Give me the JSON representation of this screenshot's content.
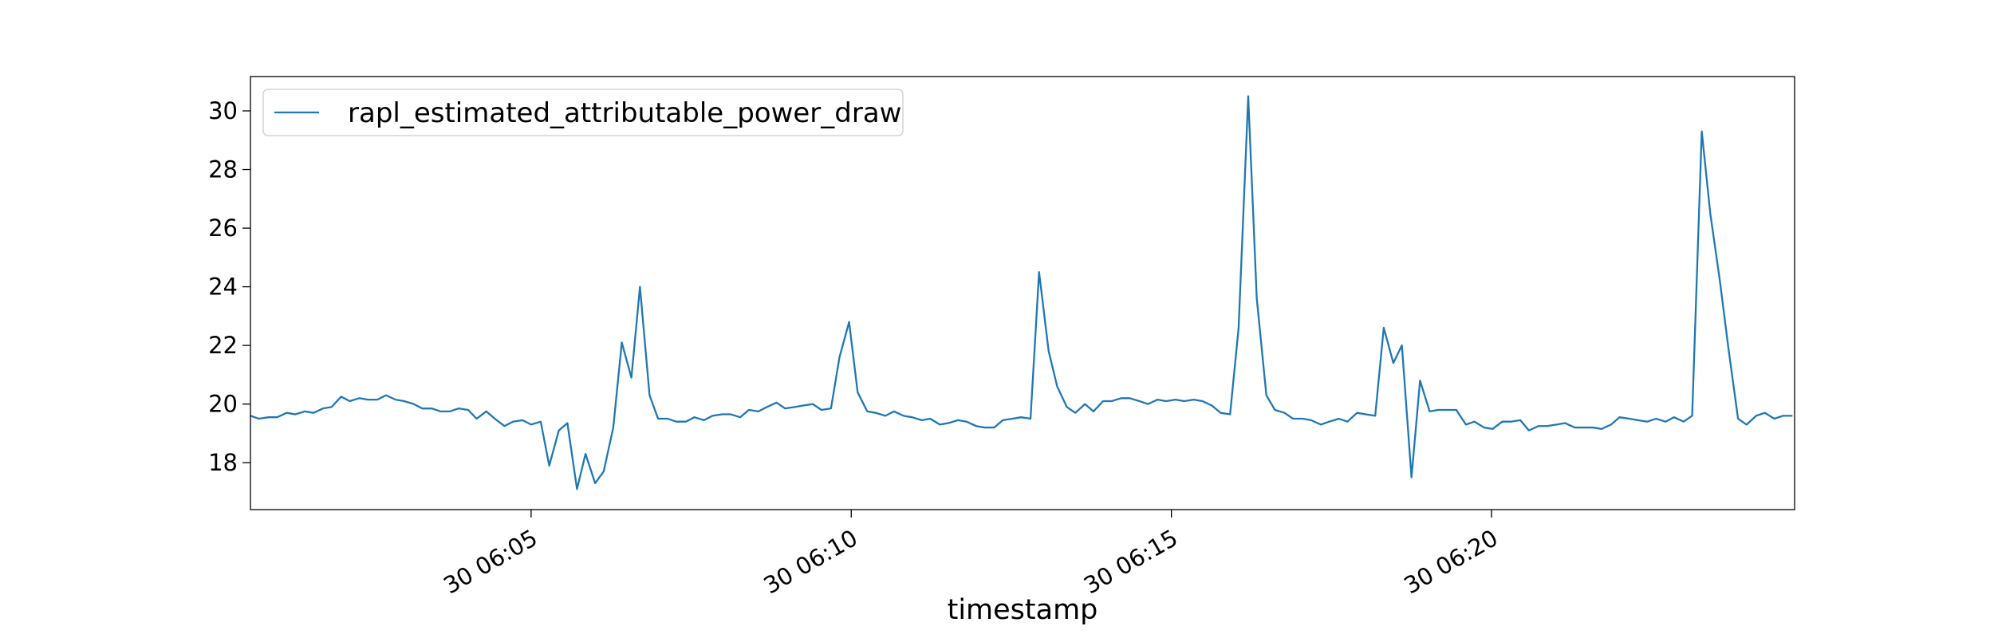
{
  "chart_data": {
    "type": "line",
    "x_label": "timestamp",
    "x": [
      "06:00:37",
      "06:00:45",
      "06:00:54",
      "06:01:02",
      "06:01:11",
      "06:01:19",
      "06:01:28",
      "06:01:36",
      "06:01:45",
      "06:01:53",
      "06:02:02",
      "06:02:10",
      "06:02:19",
      "06:02:27",
      "06:02:36",
      "06:02:44",
      "06:02:53",
      "06:03:01",
      "06:03:10",
      "06:03:18",
      "06:03:27",
      "06:03:35",
      "06:03:44",
      "06:03:52",
      "06:04:01",
      "06:04:09",
      "06:04:18",
      "06:04:26",
      "06:04:35",
      "06:04:43",
      "06:04:52",
      "06:05:00",
      "06:05:09",
      "06:05:17",
      "06:05:26",
      "06:05:34",
      "06:05:43",
      "06:05:51",
      "06:06:00",
      "06:06:08",
      "06:06:17",
      "06:06:25",
      "06:06:34",
      "06:06:42",
      "06:06:51",
      "06:06:59",
      "06:07:08",
      "06:07:16",
      "06:07:25",
      "06:07:33",
      "06:07:42",
      "06:07:50",
      "06:07:59",
      "06:08:07",
      "06:08:16",
      "06:08:24",
      "06:08:33",
      "06:08:41",
      "06:08:50",
      "06:08:58",
      "06:09:07",
      "06:09:15",
      "06:09:24",
      "06:09:32",
      "06:09:41",
      "06:09:49",
      "06:09:58",
      "06:10:06",
      "06:10:15",
      "06:10:23",
      "06:10:32",
      "06:10:40",
      "06:10:49",
      "06:10:57",
      "06:11:06",
      "06:11:14",
      "06:11:23",
      "06:11:31",
      "06:11:40",
      "06:11:48",
      "06:11:57",
      "06:12:05",
      "06:12:14",
      "06:12:22",
      "06:12:31",
      "06:12:39",
      "06:12:48",
      "06:12:56",
      "06:13:05",
      "06:13:13",
      "06:13:22",
      "06:13:30",
      "06:13:39",
      "06:13:47",
      "06:13:56",
      "06:14:04",
      "06:14:13",
      "06:14:21",
      "06:14:30",
      "06:14:38",
      "06:14:47",
      "06:14:55",
      "06:15:04",
      "06:15:12",
      "06:15:21",
      "06:15:29",
      "06:15:38",
      "06:15:46",
      "06:15:55",
      "06:16:03",
      "06:16:12",
      "06:16:20",
      "06:16:29",
      "06:16:37",
      "06:16:46",
      "06:16:54",
      "06:17:03",
      "06:17:11",
      "06:17:20",
      "06:17:28",
      "06:17:37",
      "06:17:45",
      "06:17:54",
      "06:18:02",
      "06:18:11",
      "06:18:19",
      "06:18:28",
      "06:18:36",
      "06:18:45",
      "06:18:53",
      "06:19:02",
      "06:19:10",
      "06:19:19",
      "06:19:27",
      "06:19:36",
      "06:19:44",
      "06:19:53",
      "06:20:01",
      "06:20:10",
      "06:20:18",
      "06:20:27",
      "06:20:35",
      "06:20:44",
      "06:20:52",
      "06:21:01",
      "06:21:09",
      "06:21:18",
      "06:21:26",
      "06:21:35",
      "06:21:43",
      "06:21:52",
      "06:22:00",
      "06:22:09",
      "06:22:17",
      "06:22:26",
      "06:22:34",
      "06:22:43",
      "06:22:51",
      "06:23:00",
      "06:23:08",
      "06:23:17",
      "06:23:25",
      "06:23:34",
      "06:23:42",
      "06:23:51",
      "06:23:59",
      "06:24:08",
      "06:24:16",
      "06:24:25",
      "06:24:33",
      "06:24:42"
    ],
    "series": [
      {
        "name": "rapl_estimated_attributable_power_draw",
        "color": "#1f77b4",
        "values": [
          19.6,
          19.5,
          19.55,
          19.55,
          19.7,
          19.65,
          19.75,
          19.7,
          19.85,
          19.9,
          20.25,
          20.1,
          20.2,
          20.15,
          20.15,
          20.3,
          20.15,
          20.1,
          20.0,
          19.85,
          19.85,
          19.75,
          19.75,
          19.85,
          19.8,
          19.5,
          19.75,
          19.5,
          19.25,
          19.4,
          19.45,
          19.3,
          19.4,
          17.9,
          19.1,
          19.35,
          17.1,
          18.3,
          17.3,
          17.7,
          19.2,
          22.1,
          20.9,
          24.0,
          20.3,
          19.5,
          19.5,
          19.4,
          19.4,
          19.55,
          19.45,
          19.6,
          19.65,
          19.65,
          19.55,
          19.8,
          19.75,
          19.9,
          20.05,
          19.85,
          19.9,
          19.95,
          20.0,
          19.8,
          19.85,
          21.6,
          22.8,
          20.4,
          19.75,
          19.7,
          19.6,
          19.75,
          19.6,
          19.55,
          19.45,
          19.5,
          19.3,
          19.35,
          19.45,
          19.4,
          19.25,
          19.2,
          19.2,
          19.45,
          19.5,
          19.55,
          19.5,
          24.5,
          21.8,
          20.6,
          19.9,
          19.7,
          20.0,
          19.75,
          20.1,
          20.1,
          20.2,
          20.2,
          20.1,
          20.0,
          20.15,
          20.1,
          20.15,
          20.1,
          20.15,
          20.1,
          19.95,
          19.7,
          19.65,
          22.6,
          30.5,
          23.6,
          20.3,
          19.8,
          19.7,
          19.5,
          19.5,
          19.45,
          19.3,
          19.4,
          19.5,
          19.4,
          19.7,
          19.65,
          19.6,
          22.6,
          21.4,
          22.0,
          17.5,
          20.8,
          19.75,
          19.8,
          19.8,
          19.8,
          19.3,
          19.4,
          19.2,
          19.15,
          19.4,
          19.4,
          19.45,
          19.1,
          19.25,
          19.25,
          19.3,
          19.35,
          19.2,
          19.2,
          19.2,
          19.15,
          19.3,
          19.55,
          19.5,
          19.45,
          19.4,
          19.5,
          19.4,
          19.55,
          19.4,
          19.6,
          29.3,
          26.5,
          24.2,
          21.9,
          19.5,
          19.3,
          19.6,
          19.7,
          19.5,
          19.6,
          19.6
        ]
      }
    ],
    "xlim": [
      "06:00:37",
      "06:24:44"
    ],
    "xticks": [
      {
        "value": "06:05:00",
        "label": "30 06:05"
      },
      {
        "value": "06:10:00",
        "label": "30 06:10"
      },
      {
        "value": "06:15:00",
        "label": "30 06:15"
      },
      {
        "value": "06:20:00",
        "label": "30 06:20"
      }
    ],
    "ylim": [
      16.4,
      31.17
    ],
    "yticks": [
      18,
      20,
      22,
      24,
      26,
      28,
      30
    ],
    "grid": false,
    "legend": "upper left"
  }
}
